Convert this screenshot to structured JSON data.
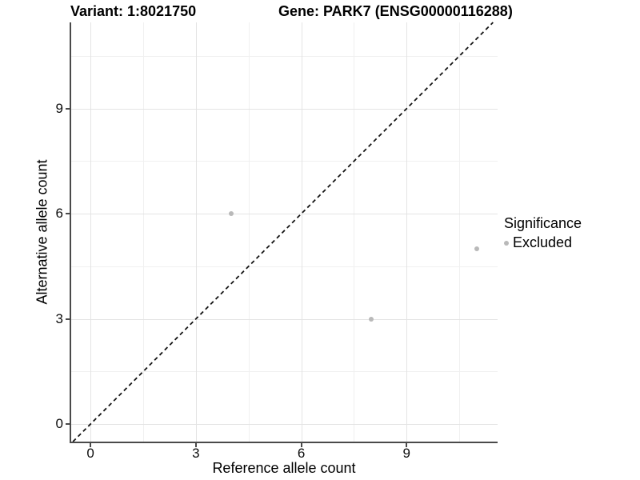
{
  "chart_data": {
    "type": "scatter",
    "title_left": "Variant: 1:8021750",
    "title_right": "Gene: PARK7 (ENSG00000116288)",
    "xlabel": "Reference allele count",
    "ylabel": "Alternative allele count",
    "xlim": [
      -0.55,
      11.59
    ],
    "ylim": [
      -0.5,
      11.46
    ],
    "x_major_ticks": [
      0,
      3,
      6,
      9
    ],
    "y_major_ticks": [
      0,
      3,
      6,
      9
    ],
    "x_minor_ticks": [
      1.5,
      4.5,
      7.5,
      10.5
    ],
    "y_minor_ticks": [
      1.5,
      4.5,
      7.5,
      10.5
    ],
    "grid": true,
    "identity_line": {
      "style": "dashed",
      "slope": 1,
      "intercept": 0,
      "from": -0.5,
      "to": 11.46,
      "color": "#141414"
    },
    "series": [
      {
        "name": "Excluded",
        "color": "#b9b9b9",
        "points": [
          {
            "x": 4,
            "y": 6
          },
          {
            "x": 8,
            "y": 3
          },
          {
            "x": 11,
            "y": 5
          }
        ]
      }
    ],
    "legend": {
      "title": "Significance",
      "position": "right",
      "entries": [
        {
          "label": "Excluded",
          "color": "#b9b9b9"
        }
      ]
    },
    "colors": {
      "axis_line": "#4a4a4a",
      "grid_major": "#e3e3e3",
      "grid_minor": "#f0f0f0",
      "background": "#ffffff"
    }
  }
}
